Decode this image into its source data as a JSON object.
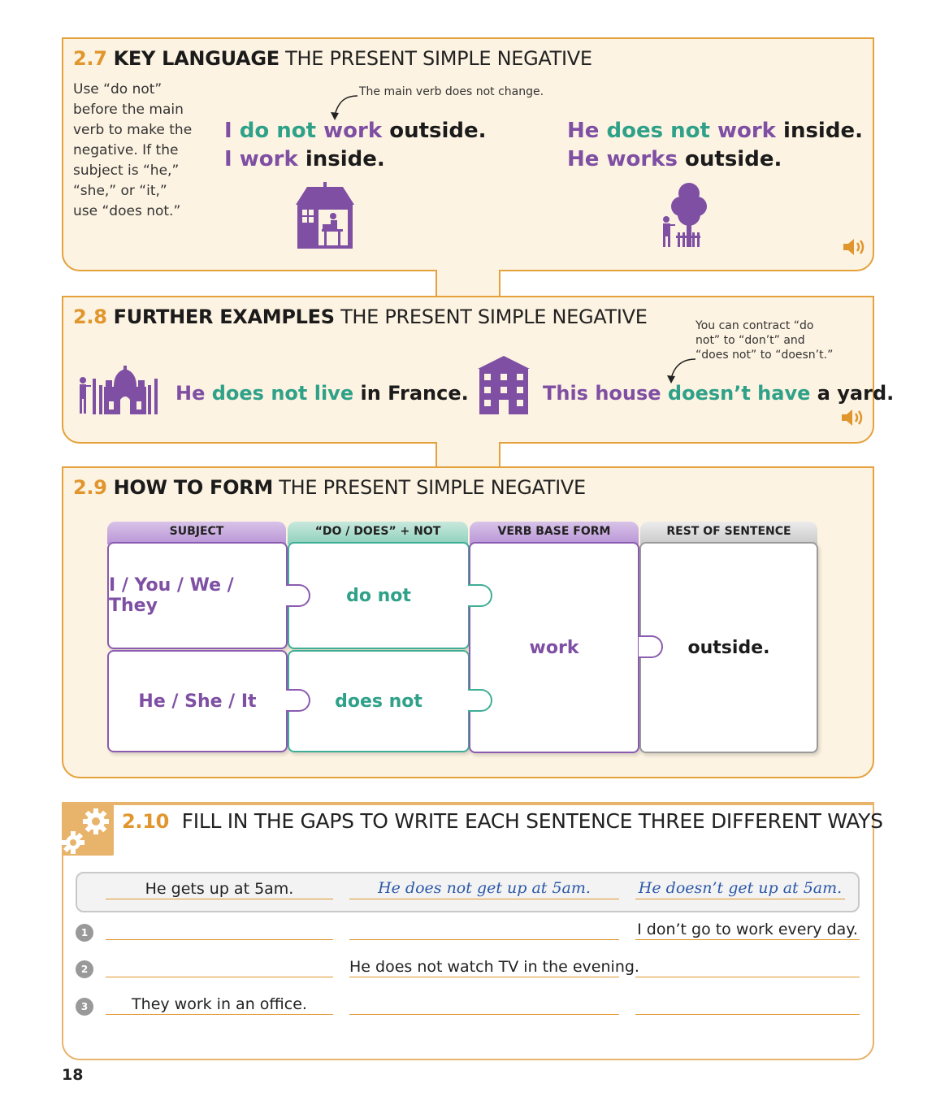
{
  "s27": {
    "num": "2.7",
    "key": "KEY LANGUAGE",
    "rest": "THE PRESENT SIMPLE NEGATIVE",
    "intro": [
      "Use “do not”",
      "before the main",
      "verb to make the",
      "negative. If the",
      "subject is “he,”",
      "“she,” or “it,”",
      "use “does not.”"
    ],
    "callout": "The main verb does not change.",
    "left_l1": {
      "a": "I",
      "b": "do not",
      "c": "work",
      "d": "outside."
    },
    "left_l2": {
      "a": "I",
      "b": "work",
      "c": "inside."
    },
    "right_l1": {
      "a": "He",
      "b": "does not",
      "c": "work",
      "d": "inside."
    },
    "right_l2": {
      "a": "He",
      "b": "works",
      "c": "outside."
    },
    "icons": [
      "house-office-icon",
      "gardener-tree-icon",
      "speaker-icon"
    ]
  },
  "s28": {
    "num": "2.8",
    "key": "FURTHER EXAMPLES",
    "rest": "THE PRESENT SIMPLE NEGATIVE",
    "callout": [
      "You can contract “do",
      "not” to “don’t” and",
      "“does not” to “doesn’t.”"
    ],
    "ex1": {
      "a": "He",
      "b": "does not live",
      "c": "in France."
    },
    "ex2": {
      "a": "This house",
      "b": "doesn’t have",
      "c": "a yard."
    },
    "icons": [
      "taj-mahal-icon",
      "apartment-building-icon",
      "speaker-icon"
    ]
  },
  "s29": {
    "num": "2.9",
    "key": "HOW TO FORM",
    "rest": "THE PRESENT SIMPLE NEGATIVE",
    "headers": [
      "SUBJECT",
      "“DO / DOES” + NOT",
      "VERB BASE FORM",
      "REST OF SENTENCE"
    ],
    "subj1": "I / You / We / They",
    "subj2": "He / She / It",
    "neg1": "do not",
    "neg2": "does not",
    "verb": "work",
    "rest_sentence": "outside.",
    "colors": {
      "purple": "#7e4fa3",
      "teal": "#2fa189",
      "orange": "#e0962d"
    }
  },
  "s210": {
    "num": "2.10",
    "title": "FILL IN THE GAPS TO WRITE EACH SENTENCE THREE DIFFERENT WAYS",
    "icon": "gears-icon",
    "example": [
      "He gets up at 5am.",
      "He does not get up at 5am.",
      "He doesn’t get up at 5am."
    ],
    "rows": [
      {
        "n": "1",
        "a": "",
        "b": "",
        "c": "I don’t go to work every day."
      },
      {
        "n": "2",
        "a": "",
        "b": "He does not watch TV in the evening.",
        "c": ""
      },
      {
        "n": "3",
        "a": "They work in an office.",
        "b": "",
        "c": ""
      }
    ]
  },
  "page_number": "18"
}
